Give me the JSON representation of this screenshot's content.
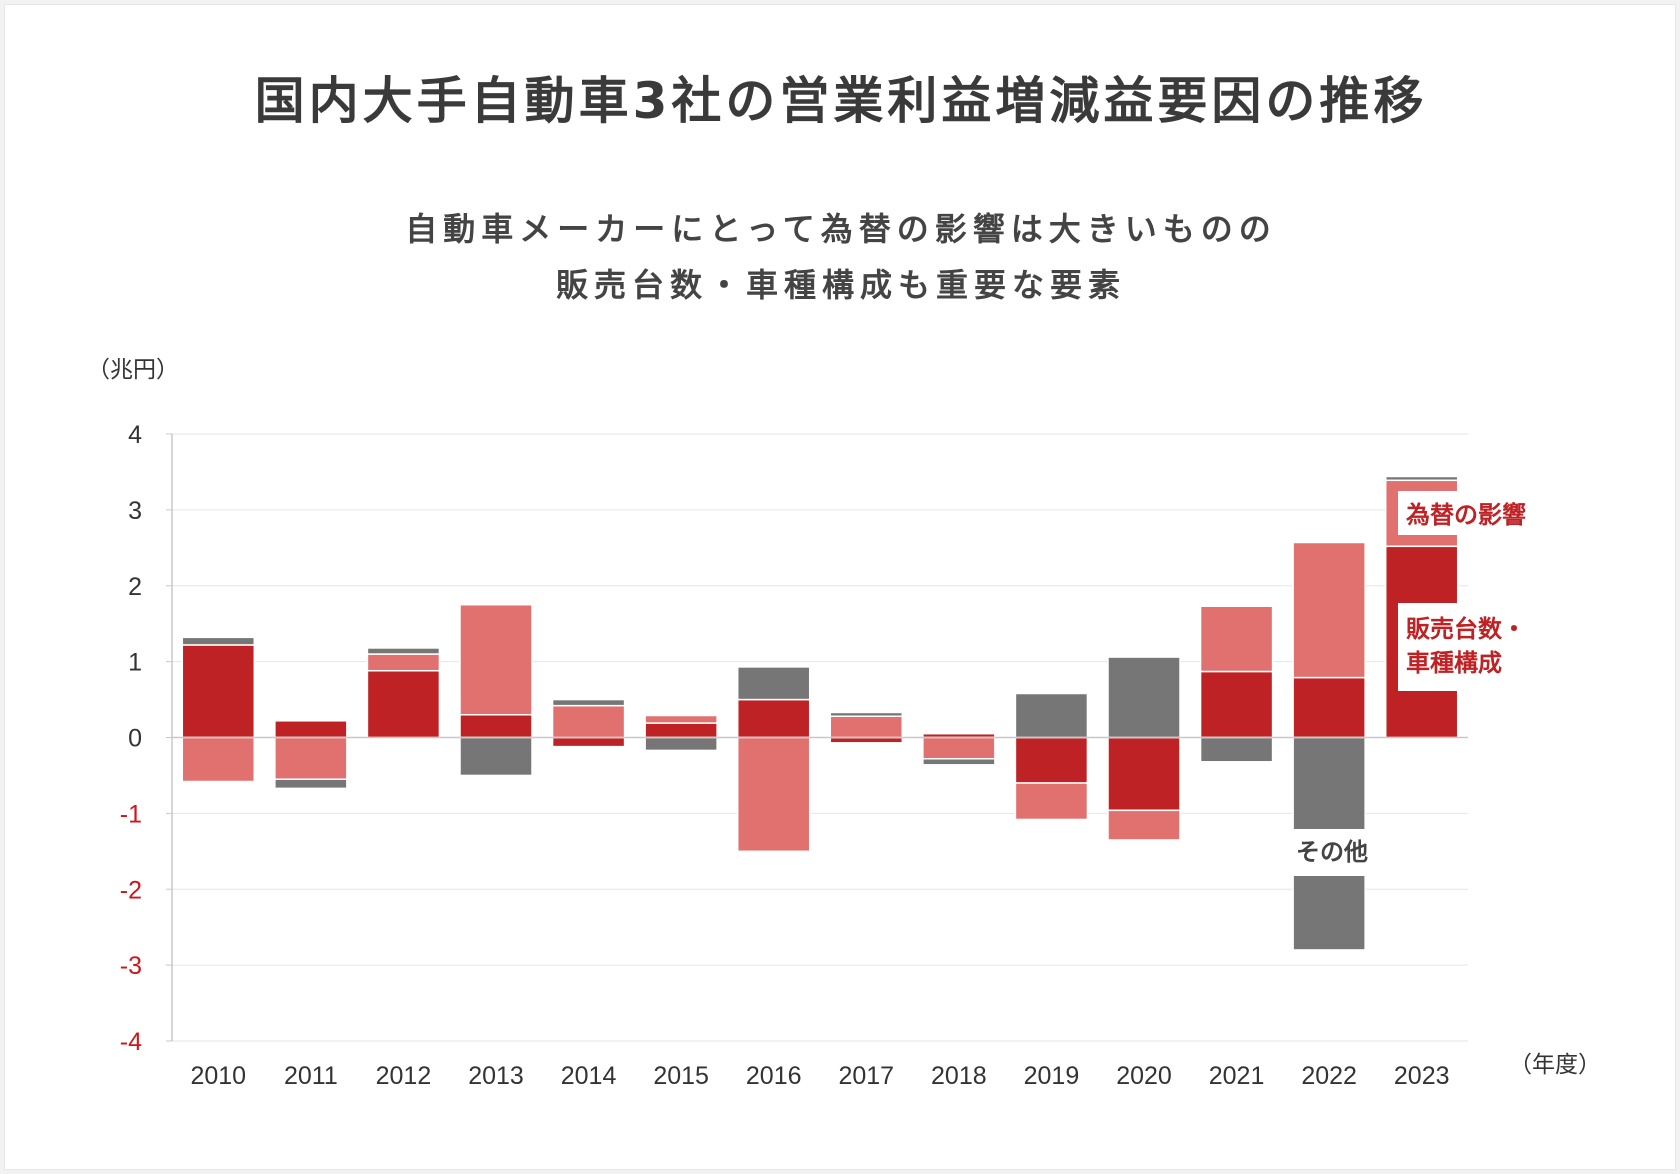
{
  "title": "国内大手自動車3社の営業利益増減益要因の推移",
  "subtitle_lines": [
    "自動車メーカーにとって為替の影響は大きいものの",
    "販売台数・車種構成も重要な要素"
  ],
  "y_unit": "（兆円）",
  "x_unit": "（年度）",
  "annotations": {
    "fx": "為替の影響",
    "sales_line1": "販売台数・",
    "sales_line2": "車種構成",
    "other": "その他"
  },
  "colors": {
    "sales": "#bf2224",
    "fx": "#e0716e",
    "other": "#767676",
    "negative_tick": "#d0151b",
    "tick": "#333333",
    "grid": "#e6e6e6",
    "axis": "#c8c8c8"
  },
  "chart_data": {
    "type": "bar",
    "stacked": true,
    "categories": [
      "2010",
      "2011",
      "2012",
      "2013",
      "2014",
      "2015",
      "2016",
      "2017",
      "2018",
      "2019",
      "2020",
      "2021",
      "2022",
      "2023"
    ],
    "ylim": [
      -4,
      4
    ],
    "yticks": [
      4,
      3,
      2,
      1,
      0,
      -1,
      -2,
      -3,
      -4
    ],
    "grid": true,
    "series": [
      {
        "name": "販売台数・車種構成",
        "key": "sales",
        "values": [
          1.22,
          0.22,
          0.88,
          0.3,
          -0.12,
          0.19,
          0.5,
          -0.07,
          0.05,
          -0.6,
          -0.96,
          0.87,
          0.79,
          2.52
        ]
      },
      {
        "name": "為替の影響",
        "key": "fx",
        "values": [
          -0.58,
          -0.55,
          0.22,
          1.45,
          0.42,
          0.1,
          -1.5,
          0.28,
          -0.28,
          -0.48,
          -0.39,
          0.86,
          1.78,
          0.87
        ]
      },
      {
        "name": "その他",
        "key": "other",
        "values": [
          0.1,
          -0.12,
          0.08,
          -0.5,
          0.08,
          -0.17,
          0.43,
          0.05,
          -0.08,
          0.58,
          1.06,
          -0.32,
          -2.8,
          0.05
        ]
      }
    ]
  }
}
